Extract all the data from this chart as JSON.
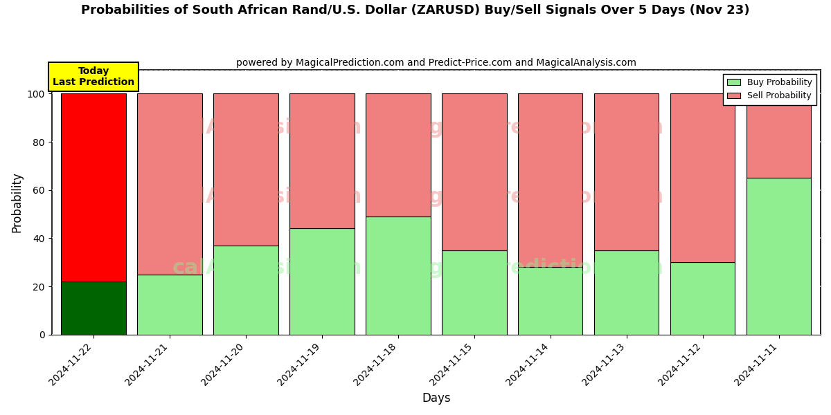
{
  "title": "Probabilities of South African Rand/U.S. Dollar (ZARUSD) Buy/Sell Signals Over 5 Days (Nov 23)",
  "subtitle": "powered by MagicalPrediction.com and Predict-Price.com and MagicalAnalysis.com",
  "xlabel": "Days",
  "ylabel": "Probability",
  "categories": [
    "2024-11-22",
    "2024-11-21",
    "2024-11-20",
    "2024-11-19",
    "2024-11-18",
    "2024-11-15",
    "2024-11-14",
    "2024-11-13",
    "2024-11-12",
    "2024-11-11"
  ],
  "buy_values": [
    22,
    25,
    37,
    44,
    49,
    35,
    28,
    35,
    30,
    65
  ],
  "sell_values": [
    78,
    75,
    63,
    56,
    51,
    65,
    72,
    65,
    70,
    35
  ],
  "today_buy_color": "#006400",
  "today_sell_color": "#ff0000",
  "buy_color": "#90ee90",
  "sell_color": "#f08080",
  "today_label_bg": "#ffff00",
  "today_label_text": "Today\nLast Prediction",
  "legend_buy": "Buy Probability",
  "legend_sell": "Sell Probability",
  "ylim": [
    0,
    110
  ],
  "yticks": [
    0,
    20,
    40,
    60,
    80,
    100
  ],
  "dashed_line_y": 110,
  "background_color": "#ffffff",
  "axes_bg_color": "#ffffff",
  "grid_color": "#cccccc",
  "title_fontsize": 13,
  "subtitle_fontsize": 10,
  "bar_width": 0.85
}
